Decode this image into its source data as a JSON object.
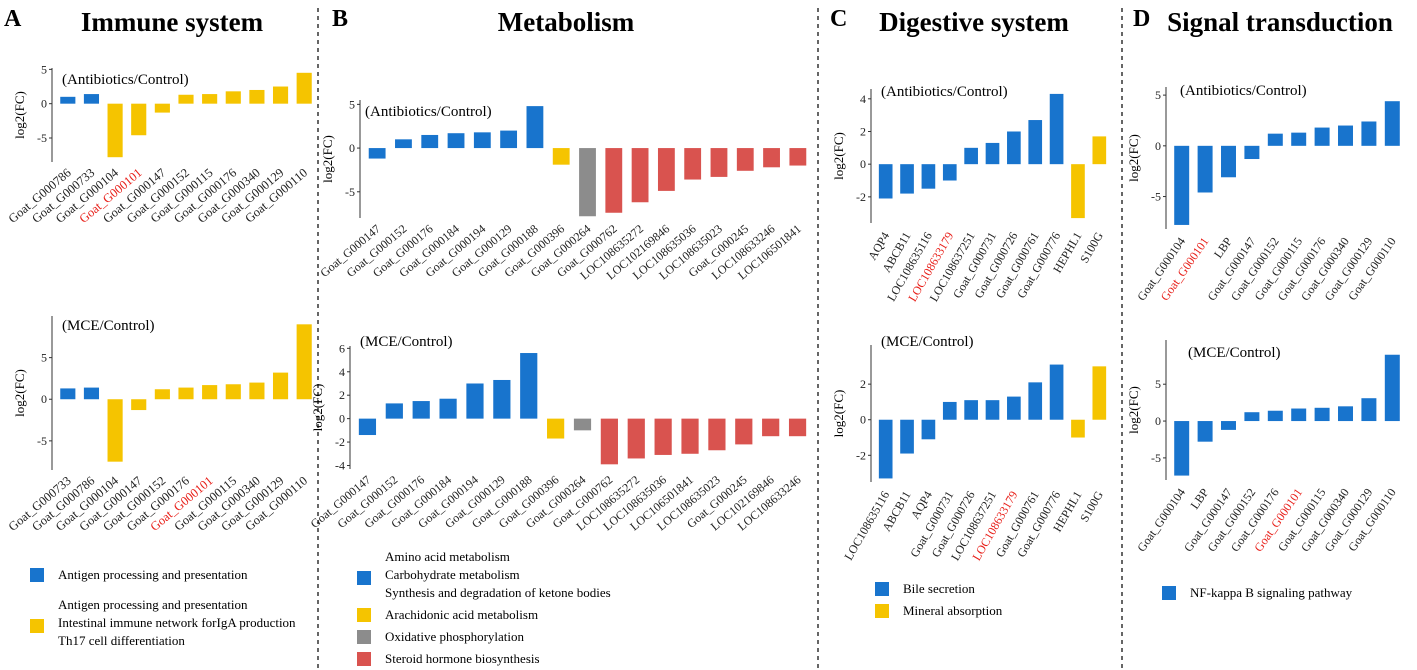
{
  "colors": {
    "blue": "#1874CD",
    "yellow": "#F5C400",
    "gray": "#8C8C8C",
    "red": "#D9534F",
    "highlight_red": "#E8201A",
    "divider": "#000000"
  },
  "panels": [
    {
      "letter": "A",
      "title": "Immune system",
      "legend": [
        {
          "color": "blue",
          "lines": [
            "Antigen processing and presentation"
          ]
        },
        {
          "color": "yellow",
          "lines": [
            "Antigen processing and presentation",
            "Intestinal immune network forIgA production",
            "Th17 cell differentiation"
          ]
        }
      ]
    },
    {
      "letter": "B",
      "title": "Metabolism",
      "legend": [
        {
          "color": "blue",
          "lines": [
            "Amino acid metabolism",
            "Carbohydrate metabolism",
            "Synthesis and degradation of ketone bodies"
          ]
        },
        {
          "color": "yellow",
          "lines": [
            "Arachidonic acid metabolism"
          ]
        },
        {
          "color": "gray",
          "lines": [
            "Oxidative phosphorylation"
          ]
        },
        {
          "color": "red",
          "lines": [
            "Steroid hormone biosynthesis"
          ]
        }
      ]
    },
    {
      "letter": "C",
      "title": "Digestive system",
      "legend": [
        {
          "color": "blue",
          "lines": [
            "Bile secretion"
          ]
        },
        {
          "color": "yellow",
          "lines": [
            "Mineral absorption"
          ]
        }
      ]
    },
    {
      "letter": "D",
      "title": "Signal transduction",
      "legend": [
        {
          "color": "blue",
          "lines": [
            "NF-kappa B signaling pathway"
          ]
        }
      ]
    }
  ],
  "chart_data": [
    {
      "id": "A-top",
      "panel": "A",
      "type": "bar",
      "annotation": "(Antibiotics/Control)",
      "ylabel": "log2(FC)",
      "xlabel": "",
      "ylim": [
        -8.5,
        5.2
      ],
      "yticks": [
        -5,
        0,
        5
      ],
      "ytick_labels": [
        "-5",
        "0",
        "5"
      ],
      "categories": [
        "Goat_G000786",
        "Goat_G000733",
        "Goat_G000104",
        "Goat_G000101",
        "Goat_G000147",
        "Goat_G000152",
        "Goat_G000115",
        "Goat_G000176",
        "Goat_G000340",
        "Goat_G000129",
        "Goat_G000110"
      ],
      "values": [
        1.0,
        1.4,
        -7.8,
        -4.6,
        -1.3,
        1.3,
        1.4,
        1.8,
        2.0,
        2.5,
        4.5
      ],
      "colors": [
        "blue",
        "blue",
        "yellow",
        "yellow",
        "yellow",
        "yellow",
        "yellow",
        "yellow",
        "yellow",
        "yellow",
        "yellow"
      ],
      "highlighted": [
        "Goat_G000101"
      ]
    },
    {
      "id": "A-bottom",
      "panel": "A",
      "type": "bar",
      "annotation": "(MCE/Control)",
      "ylabel": "log2(FC)",
      "xlabel": "",
      "ylim": [
        -8.5,
        10.0
      ],
      "yticks": [
        -5,
        0,
        5
      ],
      "ytick_labels": [
        "-5",
        "0",
        "5"
      ],
      "categories": [
        "Goat_G000733",
        "Goat_G000786",
        "Goat_G000104",
        "Goat_G000147",
        "Goat_G000152",
        "Goat_G000176",
        "Goat_G000101",
        "Goat_G000115",
        "Goat_G000340",
        "Goat_G000129",
        "Goat_G000110"
      ],
      "values": [
        1.3,
        1.4,
        -7.5,
        -1.3,
        1.2,
        1.4,
        1.7,
        1.8,
        2.0,
        3.2,
        9.0
      ],
      "colors": [
        "blue",
        "blue",
        "yellow",
        "yellow",
        "yellow",
        "yellow",
        "yellow",
        "yellow",
        "yellow",
        "yellow",
        "yellow"
      ],
      "highlighted": [
        "Goat_G000101"
      ]
    },
    {
      "id": "B-top",
      "panel": "B",
      "type": "bar",
      "annotation": "(Antibiotics/Control)",
      "ylabel": "log2(FC)",
      "xlabel": "",
      "ylim": [
        -8.0,
        5.5
      ],
      "yticks": [
        -5,
        0,
        5
      ],
      "ytick_labels": [
        "-5",
        "0",
        "5"
      ],
      "categories": [
        "Goat_G000147",
        "Goat_G000152",
        "Goat_G000176",
        "Goat_G000184",
        "Goat_G000194",
        "Goat_G000129",
        "Goat_G000188",
        "Goat_G000396",
        "Goat_G000264",
        "Goat_G000762",
        "LOC108635272",
        "LOC102169846",
        "LOC108635036",
        "LOC108635023",
        "Goat_G000245",
        "LOC108633246",
        "LOC106501841"
      ],
      "values": [
        -1.2,
        1.0,
        1.5,
        1.7,
        1.8,
        2.0,
        4.8,
        -1.9,
        -7.8,
        -7.4,
        -6.2,
        -4.9,
        -3.6,
        -3.3,
        -2.6,
        -2.2,
        -2.0
      ],
      "colors": [
        "blue",
        "blue",
        "blue",
        "blue",
        "blue",
        "blue",
        "blue",
        "yellow",
        "gray",
        "red",
        "red",
        "red",
        "red",
        "red",
        "red",
        "red",
        "red"
      ],
      "highlighted": []
    },
    {
      "id": "B-bottom",
      "panel": "B",
      "type": "bar",
      "annotation": "(MCE/Control)",
      "ylabel": "log2(FC)",
      "xlabel": "",
      "ylim": [
        -4.3,
        6.2
      ],
      "yticks": [
        -4,
        -2,
        0,
        2,
        4,
        6
      ],
      "ytick_labels": [
        "-4",
        "-2",
        "0",
        "2",
        "4",
        "6"
      ],
      "categories": [
        "Goat_G000147",
        "Goat_G000152",
        "Goat_G000176",
        "Goat_G000184",
        "Goat_G000194",
        "Goat_G000129",
        "Goat_G000188",
        "Goat_G000396",
        "Goat_G000264",
        "Goat_G000762",
        "LOC108635272",
        "LOC108635036",
        "LOC106501841",
        "LOC108635023",
        "Goat_G000245",
        "LOC102169846",
        "LOC108633246"
      ],
      "values": [
        -1.4,
        1.3,
        1.5,
        1.7,
        3.0,
        3.3,
        5.6,
        -1.7,
        -1.0,
        -3.9,
        -3.4,
        -3.1,
        -3.0,
        -2.7,
        -2.2,
        -1.5,
        -1.5
      ],
      "colors": [
        "blue",
        "blue",
        "blue",
        "blue",
        "blue",
        "blue",
        "blue",
        "yellow",
        "gray",
        "red",
        "red",
        "red",
        "red",
        "red",
        "red",
        "red",
        "red"
      ],
      "highlighted": []
    },
    {
      "id": "C-top",
      "panel": "C",
      "type": "bar",
      "annotation": "(Antibiotics/Control)",
      "ylabel": "log2(FC)",
      "xlabel": "",
      "ylim": [
        -3.6,
        4.6
      ],
      "yticks": [
        -2,
        0,
        2,
        4
      ],
      "ytick_labels": [
        "-2",
        "0",
        "2",
        "4"
      ],
      "categories": [
        "AQP4",
        "ABCB11",
        "LOC108635116",
        "LOC108633179",
        "LOC108637251",
        "Goat_G000731",
        "Goat_G000726",
        "Goat_G000761",
        "Goat_G000776",
        "HEPHL1",
        "S100G"
      ],
      "values": [
        -2.1,
        -1.8,
        -1.5,
        -1.0,
        1.0,
        1.3,
        2.0,
        2.7,
        4.3,
        -3.3,
        1.7
      ],
      "colors": [
        "blue",
        "blue",
        "blue",
        "blue",
        "blue",
        "blue",
        "blue",
        "blue",
        "blue",
        "yellow",
        "yellow"
      ],
      "highlighted": [
        "LOC108633179"
      ]
    },
    {
      "id": "C-bottom",
      "panel": "C",
      "type": "bar",
      "annotation": "(MCE/Control)",
      "ylabel": "log2(FC)",
      "xlabel": "",
      "ylim": [
        -3.5,
        4.2
      ],
      "yticks": [
        -2,
        0,
        2
      ],
      "ytick_labels": [
        "-2",
        "0",
        "2"
      ],
      "categories": [
        "LOC108635116",
        "ABCB11",
        "AQP4",
        "Goat_G000731",
        "Goat_G000726",
        "LOC108637251",
        "LOC108633179",
        "Goat_G000761",
        "Goat_G000776",
        "HEPHL1",
        "S100G"
      ],
      "values": [
        -3.3,
        -1.9,
        -1.1,
        1.0,
        1.1,
        1.1,
        1.3,
        2.1,
        3.1,
        -1.0,
        3.0
      ],
      "colors": [
        "blue",
        "blue",
        "blue",
        "blue",
        "blue",
        "blue",
        "blue",
        "blue",
        "blue",
        "yellow",
        "yellow"
      ],
      "highlighted": [
        "LOC108633179"
      ]
    },
    {
      "id": "D-top",
      "panel": "D",
      "type": "bar",
      "annotation": "(Antibiotics/Control)",
      "ylabel": "log2(FC)",
      "xlabel": "",
      "ylim": [
        -8.2,
        5.8
      ],
      "yticks": [
        -5,
        0,
        5
      ],
      "ytick_labels": [
        "-5",
        "0",
        "5"
      ],
      "categories": [
        "Goat_G000104",
        "Goat_G000101",
        "LBP",
        "Goat_G000147",
        "Goat_G000152",
        "Goat_G000115",
        "Goat_G000176",
        "Goat_G000340",
        "Goat_G000129",
        "Goat_G000110"
      ],
      "values": [
        -7.8,
        -4.6,
        -3.1,
        -1.3,
        1.2,
        1.3,
        1.8,
        2.0,
        2.4,
        4.4
      ],
      "colors": [
        "blue",
        "blue",
        "blue",
        "blue",
        "blue",
        "blue",
        "blue",
        "blue",
        "blue",
        "blue"
      ],
      "highlighted": [
        "Goat_G000101"
      ]
    },
    {
      "id": "D-bottom",
      "panel": "D",
      "type": "bar",
      "annotation": "(MCE/Control)",
      "ylabel": "log2(FC)",
      "xlabel": "",
      "ylim": [
        -8.0,
        11.0
      ],
      "yticks": [
        -5,
        0,
        5
      ],
      "ytick_labels": [
        "-5",
        "0",
        "5"
      ],
      "categories": [
        "Goat_G000104",
        "LBP",
        "Goat_G000147",
        "Goat_G000152",
        "Goat_G000176",
        "Goat_G000101",
        "Goat_G000115",
        "Goat_G000340",
        "Goat_G000129",
        "Goat_G000110"
      ],
      "values": [
        -7.4,
        -2.8,
        -1.2,
        1.2,
        1.4,
        1.7,
        1.8,
        2.0,
        3.1,
        9.0
      ],
      "colors": [
        "blue",
        "blue",
        "blue",
        "blue",
        "blue",
        "blue",
        "blue",
        "blue",
        "blue",
        "blue"
      ],
      "highlighted": [
        "Goat_G000101"
      ]
    }
  ]
}
